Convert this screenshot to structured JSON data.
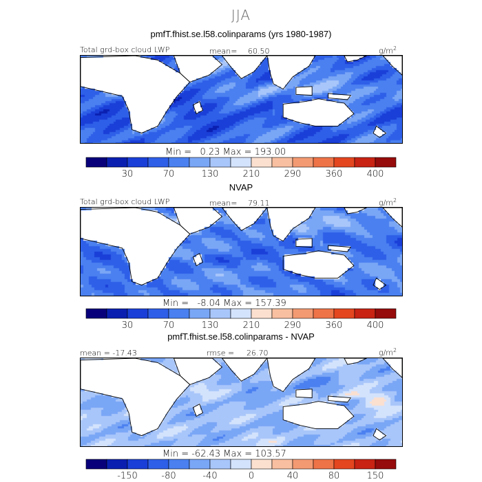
{
  "title": "JJA",
  "panels": [
    {
      "title": "pmfT.fhist.se.l58.colinparams (yrs 1980-1987)",
      "header_left": "Total grd-box cloud LWP",
      "header_mid_label": "mean=",
      "header_mid_value": "60.50",
      "units_base": "g/m",
      "units_exp": "2",
      "min_label": "Min =",
      "min_value": "0.23",
      "max_label": "Max =",
      "max_value": "193.00",
      "colorbar_labels": [
        "30",
        "70",
        "130",
        "210",
        "290",
        "360",
        "400"
      ]
    },
    {
      "title": "NVAP",
      "header_left": "Total grd-box cloud LWP",
      "header_mid_label": "mean=",
      "header_mid_value": "79.11",
      "units_base": "g/m",
      "units_exp": "2",
      "min_label": "Min =",
      "min_value": "-8.04",
      "max_label": "Max =",
      "max_value": "157.39",
      "colorbar_labels": [
        "30",
        "70",
        "130",
        "210",
        "290",
        "360",
        "400"
      ]
    },
    {
      "title": "pmfT.fhist.se.l58.colinparams - NVAP",
      "header_left": "mean = -17.43",
      "header_mid_label": "rmse =",
      "header_mid_value": "26.70",
      "units_base": "g/m",
      "units_exp": "2",
      "min_label": "Min =",
      "min_value": "-62.43",
      "max_label": "Max =",
      "max_value": "103.57",
      "colorbar_labels": [
        "-150",
        "-80",
        "-40",
        "0",
        "40",
        "80",
        "150"
      ]
    }
  ],
  "chart_data": [
    {
      "type": "heatmap",
      "title": "pmfT.fhist.se.l58.colinparams (yrs 1980-1987)",
      "subtitle": "Total grd-box cloud LWP",
      "units": "g/m2",
      "mean": 60.5,
      "min": 0.23,
      "max": 193.0,
      "colorbar_ticks": [
        30,
        70,
        130,
        210,
        290,
        360,
        400
      ],
      "colors": [
        "#08007a",
        "#0a1fb0",
        "#1a3fd8",
        "#2e5fe8",
        "#4a80f0",
        "#7aa6f6",
        "#a9c6fa",
        "#d4e3fc",
        "#fbe0d0",
        "#f8bfa0",
        "#f39a72",
        "#ee7347",
        "#e4461f",
        "#c82313",
        "#960b0b"
      ]
    },
    {
      "type": "heatmap",
      "title": "NVAP",
      "subtitle": "Total grd-box cloud LWP",
      "units": "g/m2",
      "mean": 79.11,
      "min": -8.04,
      "max": 157.39,
      "colorbar_ticks": [
        30,
        70,
        130,
        210,
        290,
        360,
        400
      ],
      "colors": [
        "#08007a",
        "#0a1fb0",
        "#1a3fd8",
        "#2e5fe8",
        "#4a80f0",
        "#7aa6f6",
        "#a9c6fa",
        "#d4e3fc",
        "#fbe0d0",
        "#f8bfa0",
        "#f39a72",
        "#ee7347",
        "#e4461f",
        "#c82313",
        "#960b0b"
      ]
    },
    {
      "type": "heatmap",
      "title": "pmfT.fhist.se.l58.colinparams - NVAP",
      "units": "g/m2",
      "mean": -17.43,
      "rmse": 26.7,
      "min": -62.43,
      "max": 103.57,
      "colorbar_ticks": [
        -150,
        -80,
        -40,
        0,
        40,
        80,
        150
      ],
      "colors": [
        "#08007a",
        "#0a1fb0",
        "#1a3fd8",
        "#2e5fe8",
        "#4a80f0",
        "#7aa6f6",
        "#a9c6fa",
        "#d4e3fc",
        "#fbe0d0",
        "#f8bfa0",
        "#f39a72",
        "#ee7347",
        "#e4461f",
        "#c82313",
        "#960b0b"
      ]
    }
  ]
}
